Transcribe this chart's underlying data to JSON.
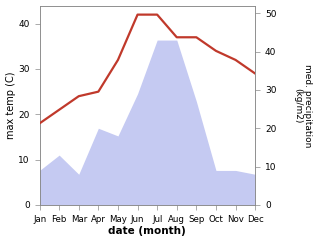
{
  "months": [
    "Jan",
    "Feb",
    "Mar",
    "Apr",
    "May",
    "Jun",
    "Jul",
    "Aug",
    "Sep",
    "Oct",
    "Nov",
    "Dec"
  ],
  "month_indices": [
    1,
    2,
    3,
    4,
    5,
    6,
    7,
    8,
    9,
    10,
    11,
    12
  ],
  "temperature": [
    18,
    21,
    24,
    25,
    32,
    42,
    42,
    37,
    37,
    34,
    32,
    29
  ],
  "precipitation": [
    9,
    13,
    8,
    20,
    18,
    29,
    43,
    43,
    27,
    9,
    9,
    8
  ],
  "temp_color": "#c0392b",
  "precip_fill_color": "#c5caf2",
  "precip_edge_color": "#c5caf2",
  "ylabel_left": "max temp (C)",
  "ylabel_right": "med. precipitation\n(kg/m2)",
  "xlabel": "date (month)",
  "ylim_left": [
    0,
    44
  ],
  "ylim_right": [
    0,
    52
  ],
  "yticks_left": [
    0,
    10,
    20,
    30,
    40
  ],
  "yticks_right": [
    0,
    10,
    20,
    30,
    40,
    50
  ],
  "background_color": "#ffffff",
  "temp_linewidth": 1.6,
  "axis_color": "#888888",
  "tick_labelsize": 6.5,
  "ylabel_left_fontsize": 7,
  "ylabel_right_fontsize": 6.5,
  "xlabel_fontsize": 7.5,
  "xtick_fontsize": 6.2
}
